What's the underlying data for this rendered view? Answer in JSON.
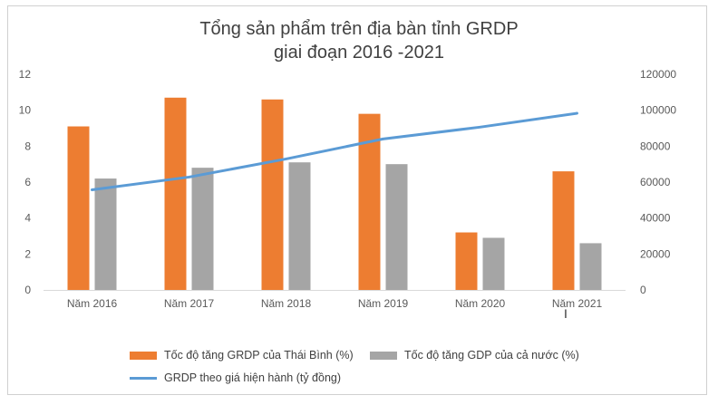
{
  "colors": {
    "orange": "#ED7D31",
    "gray": "#A5A5A5",
    "blue": "#5B9BD5"
  },
  "chart_data": {
    "type": "bar",
    "title": "Tổng sản phẩm trên địa bàn tỉnh GRDP",
    "subtitle": "giai đoạn 2016 -2021",
    "categories": [
      "Năm 2016",
      "Năm 2017",
      "Năm 2018",
      "Năm 2019",
      "Năm 2020",
      "Năm 2021"
    ],
    "series": [
      {
        "name": "Tốc độ tăng GRDP của Thái Bình (%)",
        "type": "bar",
        "axis": "left",
        "values": [
          9.1,
          10.7,
          10.6,
          9.8,
          3.2,
          6.6
        ]
      },
      {
        "name": "Tốc độ tăng GDP của cả nước (%)",
        "type": "bar",
        "axis": "left",
        "values": [
          6.2,
          6.8,
          7.1,
          7.0,
          2.9,
          2.6
        ]
      },
      {
        "name": "GRDP theo giá hiện hành (tỷ đồng)",
        "type": "line",
        "axis": "right",
        "values": [
          55700,
          62800,
          72900,
          84000,
          90600,
          98300
        ]
      }
    ],
    "ylim_left": [
      0,
      12
    ],
    "yticks_left": [
      "0",
      "2",
      "4",
      "6",
      "8",
      "10",
      "12"
    ],
    "ylim_right": [
      0,
      120000
    ],
    "yticks_right": [
      "0",
      "20000",
      "40000",
      "60000",
      "80000",
      "100000",
      "120000"
    ],
    "legend_position": "bottom",
    "grid": false
  }
}
